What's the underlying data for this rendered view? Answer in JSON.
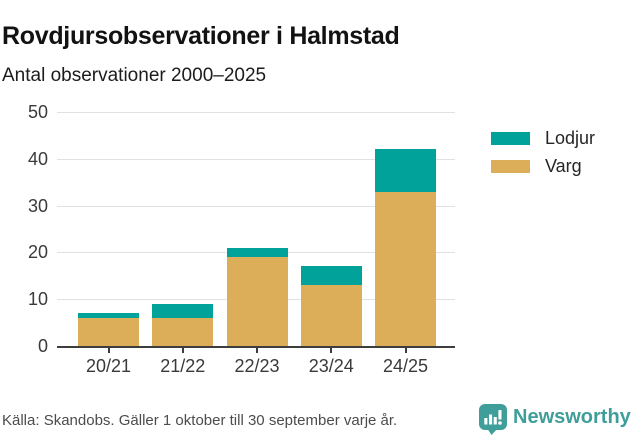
{
  "header": {
    "title": "Rovdjursobservationer i Halmstad",
    "subtitle": "Antal observationer 2000–2025"
  },
  "chart_data": {
    "type": "bar",
    "stacked": true,
    "title": "Rovdjursobservationer i Halmstad",
    "subtitle": "Antal observationer 2000–2025",
    "xlabel": "",
    "ylabel": "",
    "categories": [
      "20/21",
      "21/22",
      "22/23",
      "23/24",
      "24/25"
    ],
    "series": [
      {
        "name": "Varg",
        "color": "#dcae5a",
        "values": [
          6,
          6,
          19,
          13,
          33
        ]
      },
      {
        "name": "Lodjur",
        "color": "#00a29a",
        "values": [
          1,
          3,
          2,
          4,
          9
        ]
      }
    ],
    "stack_totals": [
      7,
      9,
      21,
      17,
      42
    ],
    "ylim": [
      0,
      50
    ],
    "yticks": [
      0,
      10,
      20,
      30,
      40,
      50
    ],
    "grid": true,
    "legend_position": "right"
  },
  "legend": {
    "items": [
      {
        "label": "Lodjur",
        "color": "#00a29a"
      },
      {
        "label": "Varg",
        "color": "#dcae5a"
      }
    ]
  },
  "footer": {
    "source": "Källa: Skandobs. Gäller 1 oktober till 30 september varje år.",
    "brand": "Newsworthy"
  },
  "colors": {
    "lodjur_teal": "#00a29a",
    "varg_gold": "#dcae5a",
    "brand_teal": "#3f9e99",
    "gridline": "#e1e1e1",
    "axis": "#3d3d3d"
  }
}
